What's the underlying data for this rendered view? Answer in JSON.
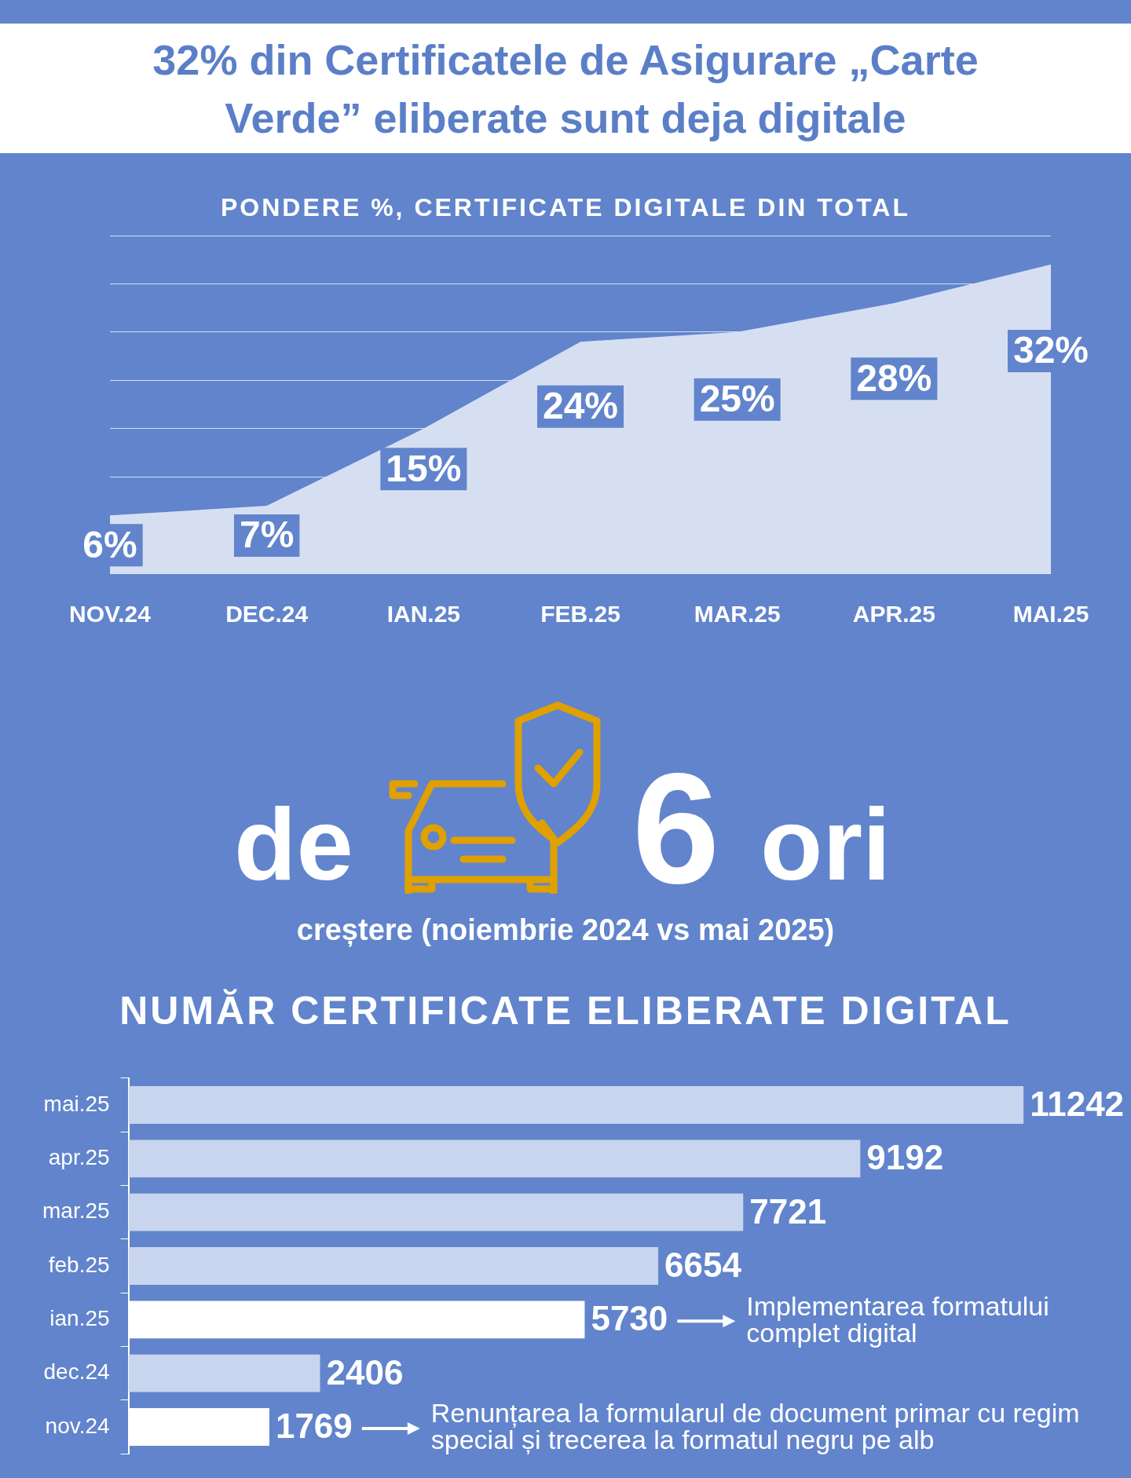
{
  "chart_data": [
    {
      "type": "area",
      "title": "32% din Certificatele de Asigurare „Carte Verde” eliberate sunt deja digitale",
      "subtitle": "PONDERE %, CERTIFICATE DIGITALE DIN TOTAL",
      "categories": [
        "NOV.24",
        "DEC.24",
        "IAN.25",
        "FEB.25",
        "MAR.25",
        "APR.25",
        "MAI.25"
      ],
      "values": [
        6,
        7,
        15,
        24,
        25,
        28,
        32
      ],
      "color": "#d6dff2",
      "value_labels": [
        "6%",
        "7%",
        "15%",
        "24%",
        "25%",
        "28%",
        "32%"
      ],
      "ylim": [
        0,
        35
      ],
      "grid": "y",
      "tick_labels": "x"
    },
    {
      "type": "other",
      "annotations": [
        "de",
        "6",
        "ori",
        "creștere (noiembrie 2024 vs mai 2025)"
      ]
    },
    {
      "type": "bar",
      "orientation": "horizontal",
      "title": "NUMĂR CERTIFICATE ELIBERATE DIGITAL",
      "categories": [
        "mai.25",
        "apr.25",
        "mar.25",
        "feb.25",
        "ian.25",
        "dec.24",
        "nov.24"
      ],
      "values": [
        11242,
        9192,
        7721,
        6654,
        5730,
        2406,
        1769
      ],
      "colors": [
        "#c9d5ee",
        "#c9d5ee",
        "#c9d5ee",
        "#c9d5ee",
        "#ffffff",
        "#c9d5ee",
        "#ffffff"
      ],
      "data_labels": true,
      "tick_labels": "y",
      "annotations": [
        "Implementarea formatului complet digital",
        "Renunțarea la formularul de document primar cu regim special și trecerea la formatul negru pe alb"
      ]
    }
  ]
}
